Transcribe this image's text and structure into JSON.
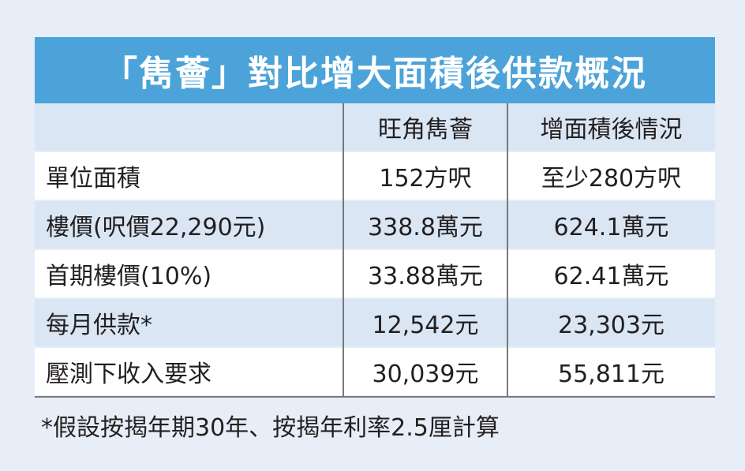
{
  "title": "「雋薈」對比增大面積後供款概況",
  "table": {
    "columns": [
      "旺角雋薈",
      "增面積後情況"
    ],
    "rows": [
      [
        "單位面積",
        "152方呎",
        "至少280方呎"
      ],
      [
        "樓價(呎價22,290元)",
        "338.8萬元",
        "624.1萬元"
      ],
      [
        "首期樓價(10%)",
        "33.88萬元",
        "62.41萬元"
      ],
      [
        "每月供款*",
        "12,542元",
        "23,303元"
      ],
      [
        "壓測下收入要求",
        "30,039元",
        "55,811元"
      ]
    ]
  },
  "footnote": "*假設按揭年期30年、按揭年利率2.5厘計算"
}
